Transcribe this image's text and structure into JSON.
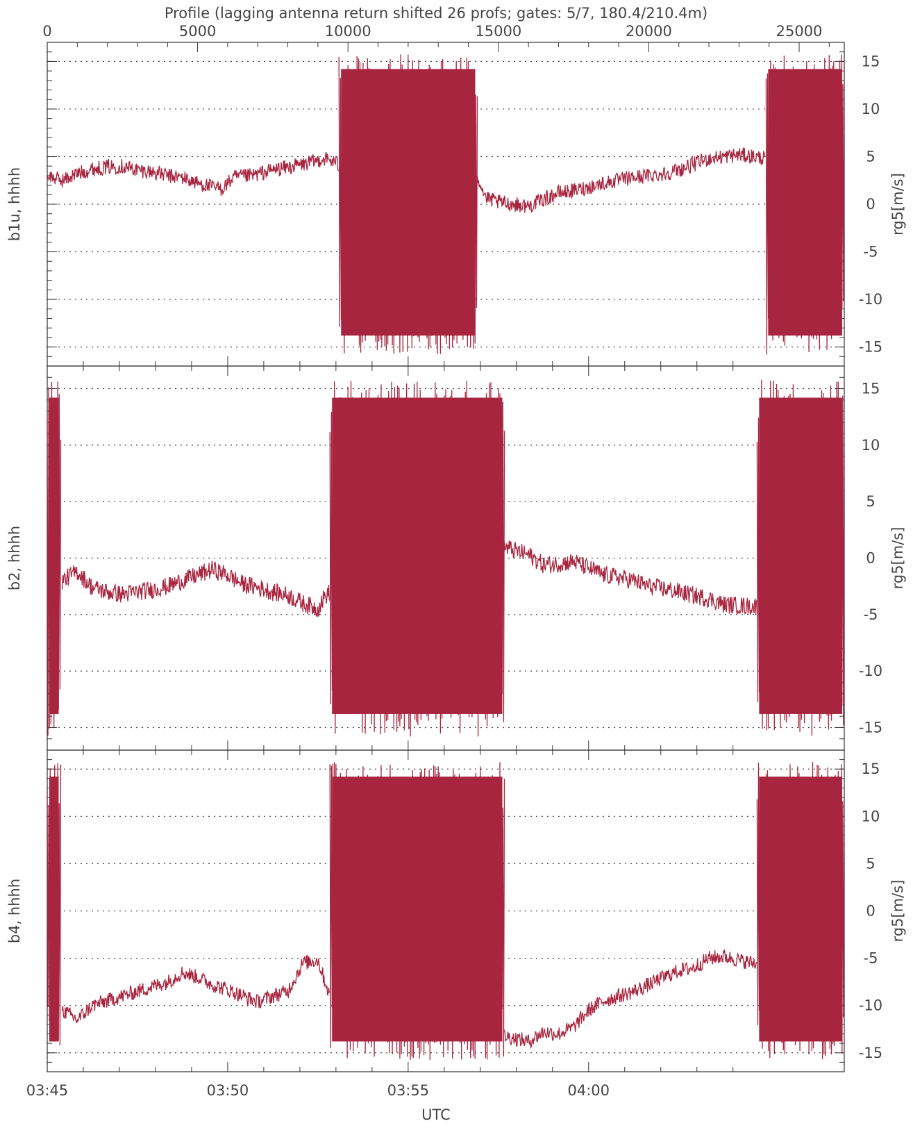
{
  "title": "Profile (lagging antenna return shifted 26 profs; gates: 5/7, 180.4/210.4m)",
  "xlabel": "UTC",
  "colors": {
    "series": "#a8253f",
    "axis": "#333333",
    "grid": "#444444"
  },
  "chart_data": [
    {
      "type": "line",
      "title": "Profile (lagging antenna return shifted 26 profs; gates: 5/7, 180.4/210.4m)",
      "xlabel": "UTC",
      "ylabel_left": "b1u, hhhh",
      "ylabel_right": "rg5[m/s]",
      "ylim": [
        -17,
        17
      ],
      "yticks": [
        -15,
        -10,
        -5,
        0,
        5,
        10,
        15
      ],
      "top_xticks": [
        0,
        5000,
        10000,
        15000,
        20000,
        25000
      ],
      "top_xlim": [
        0,
        26500
      ],
      "bottom_xticks": [
        "03:45",
        "03:50",
        "03:55",
        "04:00"
      ],
      "grid": true,
      "series": [
        {
          "noise_bands": [
            [
              9700,
              14300
            ],
            [
              23900,
              26500
            ]
          ],
          "points": [
            [
              0,
              3.0
            ],
            [
              500,
              2.5
            ],
            [
              1000,
              3.2
            ],
            [
              1500,
              3.7
            ],
            [
              2000,
              3.9
            ],
            [
              2500,
              4.0
            ],
            [
              3000,
              3.6
            ],
            [
              3500,
              3.4
            ],
            [
              4000,
              3.0
            ],
            [
              4500,
              2.8
            ],
            [
              5000,
              2.2
            ],
            [
              5500,
              1.8
            ],
            [
              5800,
              1.6
            ],
            [
              6200,
              2.8
            ],
            [
              6800,
              3.0
            ],
            [
              7500,
              3.6
            ],
            [
              8200,
              4.0
            ],
            [
              8800,
              4.4
            ],
            [
              9200,
              4.8
            ],
            [
              9600,
              4.4
            ],
            [
              9700,
              4.0
            ],
            [
              14300,
              3.0
            ],
            [
              14600,
              0.6
            ],
            [
              15000,
              0.2
            ],
            [
              15500,
              0.0
            ],
            [
              16000,
              -0.2
            ],
            [
              16500,
              0.5
            ],
            [
              17000,
              1.2
            ],
            [
              17500,
              1.4
            ],
            [
              18000,
              1.8
            ],
            [
              18500,
              2.2
            ],
            [
              19000,
              2.5
            ],
            [
              19500,
              2.8
            ],
            [
              20000,
              3.0
            ],
            [
              20500,
              3.2
            ],
            [
              21000,
              3.6
            ],
            [
              21500,
              4.2
            ],
            [
              22000,
              4.8
            ],
            [
              22500,
              5.0
            ],
            [
              23000,
              5.2
            ],
            [
              23500,
              5.0
            ],
            [
              23900,
              4.8
            ]
          ]
        }
      ]
    },
    {
      "type": "line",
      "ylabel_left": "b2, hhhh",
      "ylabel_right": "rg5[m/s]",
      "ylim": [
        -17,
        17
      ],
      "yticks": [
        -15,
        -10,
        -5,
        0,
        5,
        10,
        15
      ],
      "grid": true,
      "series": [
        {
          "noise_bands": [
            [
              0,
              450
            ],
            [
              9400,
              15200
            ],
            [
              23600,
              26500
            ]
          ],
          "points": [
            [
              500,
              -2.0
            ],
            [
              1000,
              -1.2
            ],
            [
              1500,
              -2.6
            ],
            [
              2000,
              -3.0
            ],
            [
              2500,
              -3.2
            ],
            [
              3000,
              -3.0
            ],
            [
              3500,
              -2.8
            ],
            [
              4000,
              -2.5
            ],
            [
              4500,
              -2.0
            ],
            [
              5000,
              -1.5
            ],
            [
              5500,
              -1.0
            ],
            [
              6000,
              -1.5
            ],
            [
              6500,
              -2.3
            ],
            [
              7000,
              -2.6
            ],
            [
              7500,
              -3.0
            ],
            [
              8000,
              -3.3
            ],
            [
              8500,
              -4.0
            ],
            [
              9000,
              -4.5
            ],
            [
              9200,
              -3.5
            ],
            [
              9400,
              -3.0
            ],
            [
              15200,
              1.0
            ],
            [
              15500,
              0.7
            ],
            [
              16000,
              0.3
            ],
            [
              16500,
              -0.6
            ],
            [
              17000,
              -0.5
            ],
            [
              17500,
              -0.3
            ],
            [
              18000,
              -0.9
            ],
            [
              18500,
              -1.5
            ],
            [
              19000,
              -1.7
            ],
            [
              19500,
              -2.0
            ],
            [
              20000,
              -2.5
            ],
            [
              20500,
              -2.7
            ],
            [
              21000,
              -3.0
            ],
            [
              21500,
              -3.3
            ],
            [
              22000,
              -3.6
            ],
            [
              22500,
              -4.1
            ],
            [
              23000,
              -4.2
            ],
            [
              23600,
              -4.3
            ]
          ]
        }
      ]
    },
    {
      "type": "line",
      "ylabel_left": "b4, hhhh",
      "ylabel_right": "rg5[m/s]",
      "ylim": [
        -17,
        17
      ],
      "yticks": [
        -15,
        -10,
        -5,
        0,
        5,
        10,
        15
      ],
      "grid": true,
      "series": [
        {
          "noise_bands": [
            [
              0,
              450
            ],
            [
              9400,
              15200
            ],
            [
              23600,
              26500
            ]
          ],
          "points": [
            [
              500,
              -10.5
            ],
            [
              1000,
              -11.5
            ],
            [
              1500,
              -10.0
            ],
            [
              2000,
              -9.5
            ],
            [
              2500,
              -9.0
            ],
            [
              3000,
              -8.5
            ],
            [
              3500,
              -8.0
            ],
            [
              4000,
              -7.5
            ],
            [
              4500,
              -6.5
            ],
            [
              5000,
              -7.0
            ],
            [
              5500,
              -7.8
            ],
            [
              6000,
              -8.3
            ],
            [
              6500,
              -9.0
            ],
            [
              7000,
              -9.6
            ],
            [
              7500,
              -9.0
            ],
            [
              8000,
              -8.5
            ],
            [
              8500,
              -5.5
            ],
            [
              9000,
              -5.2
            ],
            [
              9400,
              -9.0
            ],
            [
              15200,
              -13.2
            ],
            [
              15600,
              -13.5
            ],
            [
              16000,
              -13.8
            ],
            [
              16500,
              -12.8
            ],
            [
              17000,
              -13.0
            ],
            [
              17500,
              -12.3
            ],
            [
              18000,
              -10.5
            ],
            [
              18500,
              -9.5
            ],
            [
              19000,
              -9.0
            ],
            [
              19500,
              -8.5
            ],
            [
              20000,
              -7.8
            ],
            [
              20500,
              -7.0
            ],
            [
              21000,
              -6.3
            ],
            [
              21500,
              -6.0
            ],
            [
              22000,
              -5.0
            ],
            [
              22500,
              -4.8
            ],
            [
              23000,
              -5.2
            ],
            [
              23600,
              -5.6
            ]
          ]
        }
      ]
    }
  ]
}
